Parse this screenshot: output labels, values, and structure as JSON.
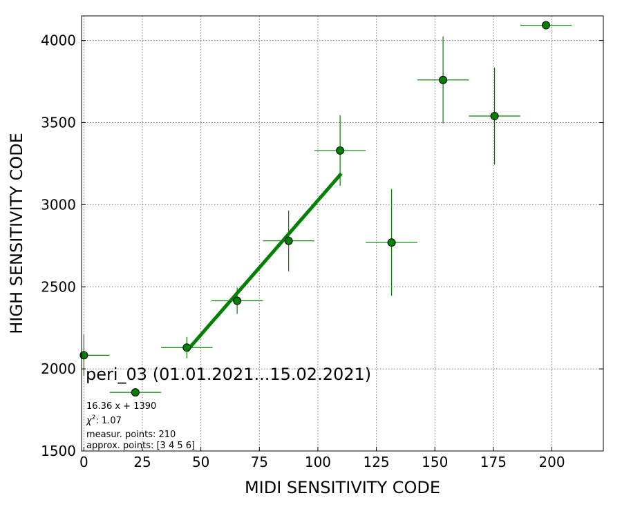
{
  "chart_data": {
    "type": "scatter",
    "xlabel": "MIDI SENSITIVITY CODE",
    "ylabel": "HIGH SENSITIVITY CODE",
    "xlim": [
      -1,
      222
    ],
    "ylim": [
      1500,
      4150
    ],
    "x_ticks": [
      0,
      25,
      50,
      75,
      100,
      125,
      150,
      175,
      200
    ],
    "y_ticks": [
      1500,
      2000,
      2500,
      3000,
      3500,
      4000
    ],
    "grid": true,
    "colors": {
      "points": "#008000",
      "fit_line": "#008000",
      "errorbars": "#008000",
      "marker_edge": "#000000"
    },
    "points": [
      {
        "x": 0,
        "y": 2083,
        "xerr": 11,
        "yerr": 125
      },
      {
        "x": 22,
        "y": 1857,
        "xerr": 11,
        "yerr": 0
      },
      {
        "x": 44,
        "y": 2130,
        "xerr": 11,
        "yerr": 65
      },
      {
        "x": 65.5,
        "y": 2415,
        "xerr": 11,
        "yerr": 80
      },
      {
        "x": 87.5,
        "y": 2780,
        "xerr": 11,
        "yerr": 185
      },
      {
        "x": 109.5,
        "y": 3330,
        "xerr": 11,
        "yerr": 215
      },
      {
        "x": 131.5,
        "y": 2770,
        "xerr": 11,
        "yerr": 325
      },
      {
        "x": 153.5,
        "y": 3760,
        "xerr": 11,
        "yerr": 265
      },
      {
        "x": 175.5,
        "y": 3540,
        "xerr": 11,
        "yerr": 295
      },
      {
        "x": 197.5,
        "y": 4093,
        "xerr": 11,
        "yerr": 0
      }
    ],
    "fit": {
      "slope": 16.36,
      "intercept": 1390,
      "x_range": [
        44,
        110
      ]
    },
    "annotations": {
      "title": "peri_03 (01.01.2021...15.02.2021)",
      "equation": "16.36 x + 1390",
      "chi2_label": "χ",
      "chi2_exp": "2",
      "chi2_value": ": 1.07",
      "measur": "measur. points: 210",
      "approx": "approx. points: [3 4 5 6]"
    }
  }
}
